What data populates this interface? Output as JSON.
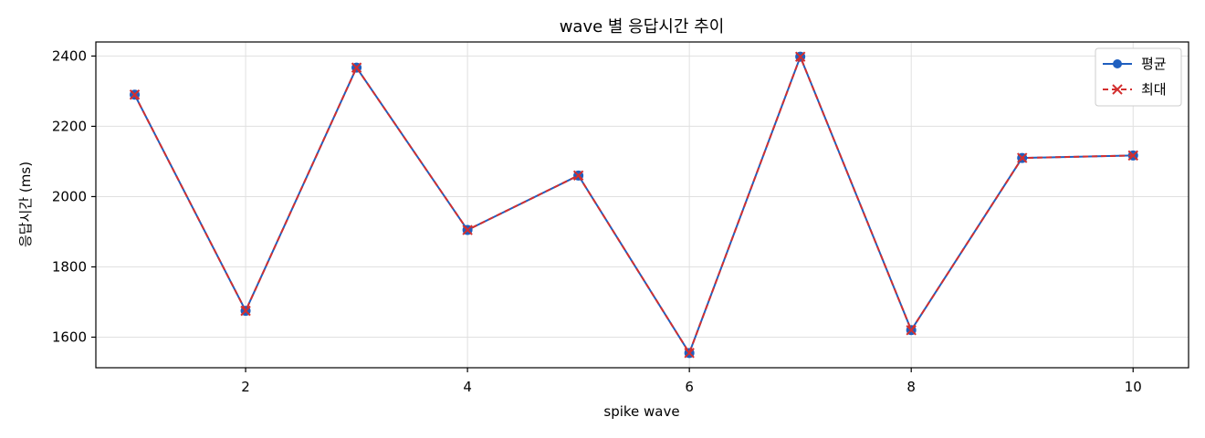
{
  "chart_data": {
    "type": "line",
    "title": "wave 별 응답시간 추이",
    "xlabel": "spike wave",
    "ylabel": "응답시간 (ms)",
    "xlim": [
      0.65,
      10.5
    ],
    "ylim": [
      1513,
      2440
    ],
    "xticks": [
      2,
      4,
      6,
      8,
      10
    ],
    "yticks": [
      1600,
      1800,
      2000,
      2200,
      2400
    ],
    "grid": true,
    "legend_position": "top-right",
    "x": [
      1,
      2,
      3,
      4,
      5,
      6,
      7,
      8,
      9,
      10
    ],
    "series": [
      {
        "name": "평균",
        "values": [
          2290,
          1675,
          2367,
          1905,
          2060,
          1555,
          2398,
          1620,
          2110,
          2117
        ],
        "color": "#1f5fbf",
        "line_style": "solid",
        "marker": "circle"
      },
      {
        "name": "최대",
        "values": [
          2290,
          1675,
          2367,
          1905,
          2060,
          1555,
          2398,
          1620,
          2110,
          2117
        ],
        "color": "#d32f2f",
        "line_style": "dashed",
        "marker": "x"
      }
    ]
  }
}
